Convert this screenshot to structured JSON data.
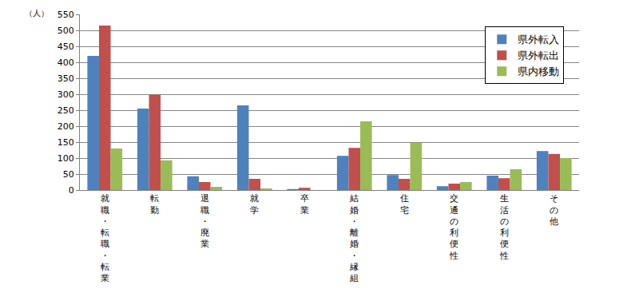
{
  "chart_data": {
    "type": "bar",
    "y_label": "（人）",
    "categories": [
      "就職・転職・転業",
      "転勤",
      "退職・廃業",
      "就学",
      "卒業",
      "結婚・離婚・縁組",
      "住宅",
      "交通の利便性",
      "生活の利便性",
      "その他"
    ],
    "series": [
      {
        "name": "県外転入",
        "color": "#4f81bd",
        "values": [
          420,
          255,
          43,
          265,
          3,
          107,
          47,
          12,
          45,
          122
        ]
      },
      {
        "name": "県外転出",
        "color": "#c0504d",
        "values": [
          515,
          298,
          25,
          35,
          7,
          132,
          35,
          20,
          37,
          113
        ]
      },
      {
        "name": "県内移動",
        "color": "#9bbb59",
        "values": [
          130,
          93,
          10,
          5,
          0,
          215,
          148,
          25,
          65,
          100
        ]
      }
    ],
    "ylim": [
      0,
      550
    ],
    "yticks": [
      0,
      50,
      100,
      150,
      200,
      250,
      300,
      350,
      400,
      450,
      500,
      550
    ],
    "grid": true,
    "legend": "top right"
  }
}
